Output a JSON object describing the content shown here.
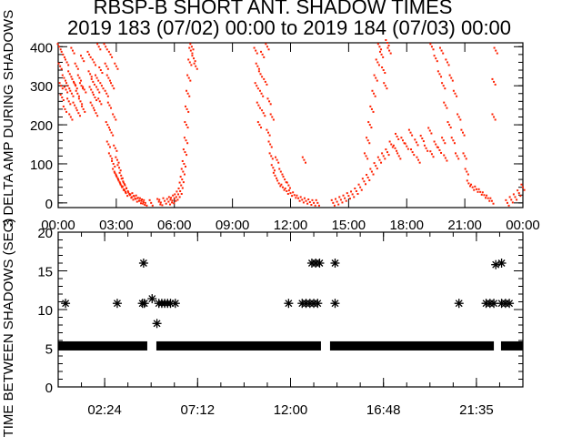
{
  "title": "RBSP-B SHORT ANT. SHADOW TIMES",
  "subtitle": "2019 183 (07/02) 00:00 to 2019 184 (07/03) 00:00",
  "colors": {
    "points": "#ff2000",
    "stars": "#000000",
    "axes": "#000000"
  },
  "chart_data": [
    {
      "type": "scatter",
      "ylabel": "3 DELTA AMP DURING SHADOWS",
      "xlim": [
        0,
        24
      ],
      "ylim": [
        -12,
        410
      ],
      "ytick_labels": [
        "0",
        "100",
        "200",
        "300",
        "400"
      ],
      "ytick_values": [
        0,
        100,
        200,
        300,
        400
      ],
      "xtick_labels": [
        "00:00",
        "03:00",
        "06:00",
        "09:00",
        "12:00",
        "15:00",
        "18:00",
        "21:00",
        "00:00"
      ],
      "xtick_values": [
        0,
        3,
        6,
        9,
        12,
        15,
        18,
        21,
        24
      ],
      "points": [
        [
          0.05,
          400
        ],
        [
          0.1,
          350
        ],
        [
          0.15,
          300
        ],
        [
          0.2,
          270
        ],
        [
          0.25,
          380
        ],
        [
          0.3,
          320
        ],
        [
          0.35,
          240
        ],
        [
          0.4,
          290
        ],
        [
          0.45,
          360
        ],
        [
          0.5,
          300
        ],
        [
          0.55,
          260
        ],
        [
          0.6,
          330
        ],
        [
          0.65,
          220
        ],
        [
          0.7,
          280
        ],
        [
          0.75,
          390
        ],
        [
          0.8,
          310
        ],
        [
          0.85,
          250
        ],
        [
          0.9,
          300
        ],
        [
          0.95,
          350
        ],
        [
          1.0,
          280
        ],
        [
          1.05,
          230
        ],
        [
          1.1,
          320
        ],
        [
          1.15,
          260
        ],
        [
          1.2,
          300
        ],
        [
          1.25,
          370
        ],
        [
          1.3,
          240
        ],
        [
          1.35,
          290
        ],
        [
          1.6,
          380
        ],
        [
          1.65,
          330
        ],
        [
          1.7,
          290
        ],
        [
          1.75,
          250
        ],
        [
          1.8,
          310
        ],
        [
          1.85,
          360
        ],
        [
          1.9,
          270
        ],
        [
          1.95,
          230
        ],
        [
          2.0,
          320
        ],
        [
          2.05,
          290
        ],
        [
          2.1,
          400
        ],
        [
          2.15,
          260
        ],
        [
          2.2,
          340
        ],
        [
          2.25,
          300
        ],
        [
          2.45,
          400
        ],
        [
          2.5,
          350
        ],
        [
          2.5,
          280
        ],
        [
          2.55,
          200
        ],
        [
          2.6,
          320
        ],
        [
          2.6,
          150
        ],
        [
          2.65,
          250
        ],
        [
          2.7,
          120
        ],
        [
          2.7,
          380
        ],
        [
          2.75,
          180
        ],
        [
          2.8,
          300
        ],
        [
          2.85,
          100
        ],
        [
          2.9,
          220
        ],
        [
          2.9,
          80
        ],
        [
          2.95,
          140
        ],
        [
          3.0,
          350
        ],
        [
          3.0,
          70
        ],
        [
          3.05,
          110
        ],
        [
          3.1,
          60
        ],
        [
          3.15,
          90
        ],
        [
          3.2,
          50
        ],
        [
          3.25,
          70
        ],
        [
          3.3,
          40
        ],
        [
          3.35,
          55
        ],
        [
          3.4,
          35
        ],
        [
          3.45,
          45
        ],
        [
          3.5,
          25
        ],
        [
          3.6,
          30
        ],
        [
          3.7,
          20
        ],
        [
          3.8,
          15
        ],
        [
          3.9,
          18
        ],
        [
          4.0,
          10
        ],
        [
          4.1,
          12
        ],
        [
          4.2,
          6
        ],
        [
          4.3,
          5
        ],
        [
          4.4,
          2
        ],
        [
          4.5,
          0
        ],
        [
          4.8,
          0
        ],
        [
          5.2,
          3
        ],
        [
          5.3,
          1
        ],
        [
          5.5,
          5
        ],
        [
          5.7,
          3
        ],
        [
          5.8,
          8
        ],
        [
          5.9,
          6
        ],
        [
          6.0,
          12
        ],
        [
          6.1,
          15
        ],
        [
          6.2,
          22
        ],
        [
          6.3,
          30
        ],
        [
          6.35,
          45
        ],
        [
          6.4,
          60
        ],
        [
          6.45,
          80
        ],
        [
          6.5,
          100
        ],
        [
          6.55,
          130
        ],
        [
          6.6,
          160
        ],
        [
          6.62,
          200
        ],
        [
          6.65,
          240
        ],
        [
          6.7,
          280
        ],
        [
          6.75,
          320
        ],
        [
          6.8,
          360
        ],
        [
          6.85,
          390
        ],
        [
          6.9,
          400
        ],
        [
          7.0,
          370
        ],
        [
          7.1,
          350
        ],
        [
          10.2,
          390
        ],
        [
          10.25,
          300
        ],
        [
          10.3,
          350
        ],
        [
          10.35,
          250
        ],
        [
          10.4,
          200
        ],
        [
          10.45,
          330
        ],
        [
          10.5,
          280
        ],
        [
          10.55,
          380
        ],
        [
          10.6,
          230
        ],
        [
          10.7,
          310
        ],
        [
          10.8,
          400
        ],
        [
          10.85,
          180
        ],
        [
          10.9,
          260
        ],
        [
          10.95,
          150
        ],
        [
          11.0,
          120
        ],
        [
          11.05,
          220
        ],
        [
          11.1,
          90
        ],
        [
          11.2,
          70
        ],
        [
          11.3,
          110
        ],
        [
          11.4,
          50
        ],
        [
          11.5,
          80
        ],
        [
          11.6,
          40
        ],
        [
          11.7,
          60
        ],
        [
          11.8,
          30
        ],
        [
          11.9,
          45
        ],
        [
          12.0,
          25
        ],
        [
          12.2,
          20
        ],
        [
          12.4,
          12
        ],
        [
          12.6,
          8
        ],
        [
          12.8,
          5
        ],
        [
          13.0,
          2
        ],
        [
          13.2,
          0
        ],
        [
          13.4,
          0
        ],
        [
          14.2,
          0
        ],
        [
          14.4,
          3
        ],
        [
          14.6,
          8
        ],
        [
          14.8,
          12
        ],
        [
          15.0,
          18
        ],
        [
          15.2,
          22
        ],
        [
          15.4,
          30
        ],
        [
          15.6,
          40
        ],
        [
          15.8,
          55
        ],
        [
          16.0,
          65
        ],
        [
          16.2,
          80
        ],
        [
          16.4,
          95
        ],
        [
          16.6,
          110
        ],
        [
          16.8,
          120
        ],
        [
          15.9,
          120
        ],
        [
          16.0,
          160
        ],
        [
          16.1,
          200
        ],
        [
          16.2,
          240
        ],
        [
          16.3,
          280
        ],
        [
          16.4,
          320
        ],
        [
          16.5,
          360
        ],
        [
          16.6,
          400
        ],
        [
          16.7,
          380
        ],
        [
          16.8,
          340
        ],
        [
          16.9,
          300
        ],
        [
          17.0,
          410
        ],
        [
          17.1,
          390
        ],
        [
          17.0,
          130
        ],
        [
          17.2,
          150
        ],
        [
          17.4,
          140
        ],
        [
          17.5,
          170
        ],
        [
          17.6,
          120
        ],
        [
          17.8,
          160
        ],
        [
          18.0,
          145
        ],
        [
          18.2,
          180
        ],
        [
          18.3,
          130
        ],
        [
          18.5,
          155
        ],
        [
          18.6,
          110
        ],
        [
          18.8,
          165
        ],
        [
          19.0,
          140
        ],
        [
          19.2,
          185
        ],
        [
          19.3,
          125
        ],
        [
          19.5,
          150
        ],
        [
          19.7,
          135
        ],
        [
          19.9,
          160
        ],
        [
          20.0,
          115
        ],
        [
          19.3,
          400
        ],
        [
          19.5,
          370
        ],
        [
          19.7,
          330
        ],
        [
          19.8,
          390
        ],
        [
          19.9,
          300
        ],
        [
          20.0,
          250
        ],
        [
          20.1,
          360
        ],
        [
          20.2,
          200
        ],
        [
          20.3,
          320
        ],
        [
          20.4,
          160
        ],
        [
          20.5,
          280
        ],
        [
          20.6,
          120
        ],
        [
          20.7,
          220
        ],
        [
          20.9,
          180
        ],
        [
          21.0,
          120
        ],
        [
          21.1,
          80
        ],
        [
          21.2,
          50
        ],
        [
          21.4,
          40
        ],
        [
          21.6,
          35
        ],
        [
          21.8,
          28
        ],
        [
          22.0,
          20
        ],
        [
          22.2,
          12
        ],
        [
          22.4,
          5
        ],
        [
          23.2,
          0
        ],
        [
          23.4,
          8
        ],
        [
          23.6,
          15
        ],
        [
          23.8,
          25
        ],
        [
          24.0,
          40
        ],
        [
          22.6,
          390
        ],
        [
          22.5,
          310
        ],
        [
          22.5,
          220
        ],
        [
          12.7,
          110
        ]
      ]
    },
    {
      "type": "scatter",
      "ylabel": "TIME BETWEEN SHADOWS (SEC)",
      "xlim": [
        0,
        24
      ],
      "ylim": [
        0,
        20
      ],
      "ytick_labels": [
        "0",
        "5",
        "10",
        "15",
        "20"
      ],
      "ytick_values": [
        0,
        5,
        10,
        15,
        20
      ],
      "xtick_labels": [
        "02:24",
        "07:12",
        "12:00",
        "16:48",
        "21:35"
      ],
      "xtick_values": [
        2.4,
        7.2,
        12.0,
        16.8,
        21.6
      ],
      "baseline_value": 5.3,
      "baseline_segments": [
        [
          0,
          4.6
        ],
        [
          5.07,
          13.57
        ],
        [
          14.04,
          22.5
        ],
        [
          22.87,
          24
        ]
      ],
      "points": [
        [
          0.38,
          10.8
        ],
        [
          3.05,
          10.8
        ],
        [
          4.41,
          16.0
        ],
        [
          4.35,
          10.8
        ],
        [
          4.45,
          10.8
        ],
        [
          4.85,
          11.4
        ],
        [
          5.1,
          8.2
        ],
        [
          5.2,
          10.8
        ],
        [
          5.35,
          10.8
        ],
        [
          5.5,
          10.8
        ],
        [
          5.65,
          10.8
        ],
        [
          5.8,
          10.8
        ],
        [
          6.05,
          10.8
        ],
        [
          11.9,
          10.8
        ],
        [
          12.6,
          10.8
        ],
        [
          12.8,
          10.8
        ],
        [
          13.0,
          10.8
        ],
        [
          13.2,
          10.8
        ],
        [
          13.4,
          10.8
        ],
        [
          13.1,
          16.0
        ],
        [
          13.3,
          16.0
        ],
        [
          13.5,
          16.0
        ],
        [
          14.3,
          16.0
        ],
        [
          14.3,
          10.8
        ],
        [
          20.7,
          10.8
        ],
        [
          22.1,
          10.8
        ],
        [
          22.3,
          10.8
        ],
        [
          22.5,
          10.8
        ],
        [
          22.6,
          15.8
        ],
        [
          22.9,
          16.0
        ],
        [
          22.9,
          10.8
        ],
        [
          23.1,
          10.8
        ],
        [
          23.3,
          10.8
        ]
      ]
    }
  ]
}
